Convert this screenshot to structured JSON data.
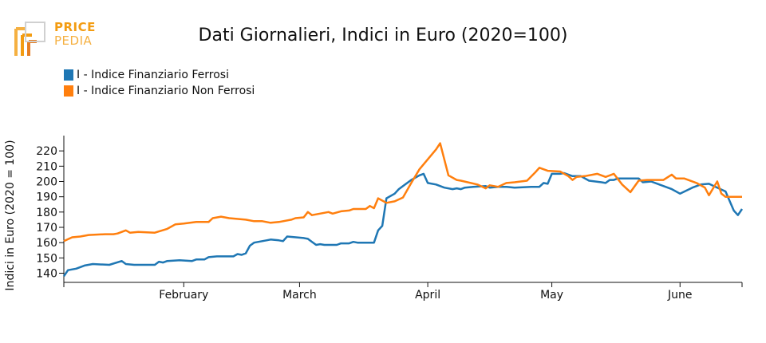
{
  "logo": {
    "line1": "PRICE",
    "line2": "PEDIA",
    "accent": "#f39c12"
  },
  "chart_data": {
    "type": "line",
    "title": "Dati Giornalieri, Indici in Euro (2020=100)",
    "ylabel": "Indici in Euro (2020 = 100)",
    "xlabel": "",
    "ylim": [
      134,
      230
    ],
    "yticks": [
      140,
      150,
      160,
      170,
      180,
      190,
      200,
      210,
      220
    ],
    "xlim": [
      "2022-01-03",
      "2022-06-16"
    ],
    "xticks": [
      {
        "date": "2022-02-01",
        "label": "February"
      },
      {
        "date": "2022-03-01",
        "label": "March"
      },
      {
        "date": "2022-04-01",
        "label": "April"
      },
      {
        "date": "2022-05-01",
        "label": "May"
      },
      {
        "date": "2022-06-01",
        "label": "June"
      }
    ],
    "legend_position": "top-left",
    "series": [
      {
        "name": "I - Indice Finanziario Ferrosi",
        "color": "#1f77b4",
        "points": [
          [
            "2022-01-03",
            138
          ],
          [
            "2022-01-04",
            142
          ],
          [
            "2022-01-06",
            143
          ],
          [
            "2022-01-08",
            145
          ],
          [
            "2022-01-10",
            146
          ],
          [
            "2022-01-14",
            145.5
          ],
          [
            "2022-01-17",
            148
          ],
          [
            "2022-01-18",
            146
          ],
          [
            "2022-01-20",
            145.5
          ],
          [
            "2022-01-25",
            145.5
          ],
          [
            "2022-01-26",
            147.5
          ],
          [
            "2022-01-27",
            147
          ],
          [
            "2022-01-28",
            148
          ],
          [
            "2022-01-31",
            148.5
          ],
          [
            "2022-02-03",
            148
          ],
          [
            "2022-02-04",
            149
          ],
          [
            "2022-02-06",
            149
          ],
          [
            "2022-02-07",
            150.5
          ],
          [
            "2022-02-09",
            151
          ],
          [
            "2022-02-13",
            151
          ],
          [
            "2022-02-14",
            152.5
          ],
          [
            "2022-02-15",
            152
          ],
          [
            "2022-02-16",
            153
          ],
          [
            "2022-02-17",
            158
          ],
          [
            "2022-02-18",
            160
          ],
          [
            "2022-02-21",
            161.5
          ],
          [
            "2022-02-22",
            162
          ],
          [
            "2022-02-24",
            161.5
          ],
          [
            "2022-02-25",
            161
          ],
          [
            "2022-02-26",
            164
          ],
          [
            "2022-03-02",
            163
          ],
          [
            "2022-03-03",
            162.5
          ],
          [
            "2022-03-04",
            160.5
          ],
          [
            "2022-03-05",
            158.5
          ],
          [
            "2022-03-06",
            159
          ],
          [
            "2022-03-07",
            158.5
          ],
          [
            "2022-03-10",
            158.5
          ],
          [
            "2022-03-11",
            159.5
          ],
          [
            "2022-03-13",
            159.5
          ],
          [
            "2022-03-14",
            160.5
          ],
          [
            "2022-03-15",
            160
          ],
          [
            "2022-03-18",
            160
          ],
          [
            "2022-03-19",
            160
          ],
          [
            "2022-03-20",
            168
          ],
          [
            "2022-03-21",
            171
          ],
          [
            "2022-03-22",
            189
          ],
          [
            "2022-03-24",
            192
          ],
          [
            "2022-03-25",
            195
          ],
          [
            "2022-03-28",
            201
          ],
          [
            "2022-03-30",
            204
          ],
          [
            "2022-03-31",
            205
          ],
          [
            "2022-04-01",
            199
          ],
          [
            "2022-04-03",
            198
          ],
          [
            "2022-04-05",
            196
          ],
          [
            "2022-04-07",
            195
          ],
          [
            "2022-04-08",
            195.5
          ],
          [
            "2022-04-09",
            195
          ],
          [
            "2022-04-10",
            196
          ],
          [
            "2022-04-12",
            196.5
          ],
          [
            "2022-04-15",
            197
          ],
          [
            "2022-04-16",
            196
          ],
          [
            "2022-04-18",
            196.5
          ],
          [
            "2022-04-20",
            196.5
          ],
          [
            "2022-04-22",
            196
          ],
          [
            "2022-04-26",
            196.5
          ],
          [
            "2022-04-28",
            196.5
          ],
          [
            "2022-04-29",
            199
          ],
          [
            "2022-04-30",
            198.5
          ],
          [
            "2022-05-01",
            205
          ],
          [
            "2022-05-03",
            205
          ],
          [
            "2022-05-04",
            205.5
          ],
          [
            "2022-05-06",
            203.5
          ],
          [
            "2022-05-08",
            203.5
          ],
          [
            "2022-05-10",
            200.5
          ],
          [
            "2022-05-13",
            199.5
          ],
          [
            "2022-05-14",
            199
          ],
          [
            "2022-05-15",
            201
          ],
          [
            "2022-05-16",
            201
          ],
          [
            "2022-05-17",
            202
          ],
          [
            "2022-05-20",
            202
          ],
          [
            "2022-05-22",
            202
          ],
          [
            "2022-05-23",
            199.5
          ],
          [
            "2022-05-25",
            200
          ],
          [
            "2022-05-27",
            198
          ],
          [
            "2022-05-30",
            195
          ],
          [
            "2022-06-01",
            192
          ],
          [
            "2022-06-04",
            196
          ],
          [
            "2022-06-06",
            198
          ],
          [
            "2022-06-08",
            198.5
          ],
          [
            "2022-06-10",
            196
          ],
          [
            "2022-06-12",
            193.5
          ],
          [
            "2022-06-14",
            181
          ],
          [
            "2022-06-15",
            178
          ],
          [
            "2022-06-16",
            182
          ]
        ]
      },
      {
        "name": "I - Indice Finanziario Non Ferrosi",
        "color": "#ff7f0e",
        "points": [
          [
            "2022-01-03",
            161
          ],
          [
            "2022-01-05",
            163.5
          ],
          [
            "2022-01-07",
            164
          ],
          [
            "2022-01-09",
            165
          ],
          [
            "2022-01-13",
            165.5
          ],
          [
            "2022-01-15",
            165.5
          ],
          [
            "2022-01-16",
            166
          ],
          [
            "2022-01-18",
            168
          ],
          [
            "2022-01-19",
            166.5
          ],
          [
            "2022-01-21",
            167
          ],
          [
            "2022-01-25",
            166.5
          ],
          [
            "2022-01-28",
            169
          ],
          [
            "2022-01-30",
            172
          ],
          [
            "2022-02-01",
            172.5
          ],
          [
            "2022-02-04",
            173.5
          ],
          [
            "2022-02-07",
            173.5
          ],
          [
            "2022-02-08",
            176
          ],
          [
            "2022-02-10",
            177
          ],
          [
            "2022-02-12",
            176
          ],
          [
            "2022-02-16",
            175
          ],
          [
            "2022-02-18",
            174
          ],
          [
            "2022-02-20",
            174
          ],
          [
            "2022-02-22",
            173
          ],
          [
            "2022-02-24",
            173.5
          ],
          [
            "2022-02-27",
            175
          ],
          [
            "2022-02-28",
            176
          ],
          [
            "2022-03-02",
            176.5
          ],
          [
            "2022-03-03",
            180
          ],
          [
            "2022-03-04",
            178
          ],
          [
            "2022-03-08",
            180
          ],
          [
            "2022-03-09",
            179
          ],
          [
            "2022-03-11",
            180.5
          ],
          [
            "2022-03-13",
            181
          ],
          [
            "2022-03-14",
            182
          ],
          [
            "2022-03-17",
            182
          ],
          [
            "2022-03-18",
            184
          ],
          [
            "2022-03-19",
            182.5
          ],
          [
            "2022-03-20",
            189
          ],
          [
            "2022-03-22",
            186
          ],
          [
            "2022-03-24",
            187
          ],
          [
            "2022-03-26",
            189.5
          ],
          [
            "2022-03-28",
            199
          ],
          [
            "2022-03-30",
            208
          ],
          [
            "2022-04-03",
            221
          ],
          [
            "2022-04-04",
            225
          ],
          [
            "2022-04-06",
            204
          ],
          [
            "2022-04-08",
            201
          ],
          [
            "2022-04-09",
            200.5
          ],
          [
            "2022-04-13",
            198
          ],
          [
            "2022-04-15",
            195.5
          ],
          [
            "2022-04-16",
            197.5
          ],
          [
            "2022-04-18",
            196.5
          ],
          [
            "2022-04-20",
            199
          ],
          [
            "2022-04-22",
            199.5
          ],
          [
            "2022-04-25",
            200.5
          ],
          [
            "2022-04-27",
            206
          ],
          [
            "2022-04-28",
            209
          ],
          [
            "2022-04-30",
            207
          ],
          [
            "2022-05-03",
            206.5
          ],
          [
            "2022-05-05",
            203.5
          ],
          [
            "2022-05-06",
            201
          ],
          [
            "2022-05-07",
            203
          ],
          [
            "2022-05-09",
            203.5
          ],
          [
            "2022-05-12",
            205
          ],
          [
            "2022-05-14",
            203
          ],
          [
            "2022-05-16",
            205
          ],
          [
            "2022-05-18",
            198
          ],
          [
            "2022-05-20",
            193
          ],
          [
            "2022-05-22",
            200.5
          ],
          [
            "2022-05-24",
            201
          ],
          [
            "2022-05-28",
            201
          ],
          [
            "2022-05-30",
            204.5
          ],
          [
            "2022-05-31",
            202
          ],
          [
            "2022-06-02",
            202
          ],
          [
            "2022-06-05",
            199
          ],
          [
            "2022-06-07",
            196
          ],
          [
            "2022-06-08",
            191
          ],
          [
            "2022-06-10",
            200
          ],
          [
            "2022-06-11",
            192
          ],
          [
            "2022-06-12",
            190
          ],
          [
            "2022-06-16",
            190
          ]
        ]
      }
    ]
  }
}
